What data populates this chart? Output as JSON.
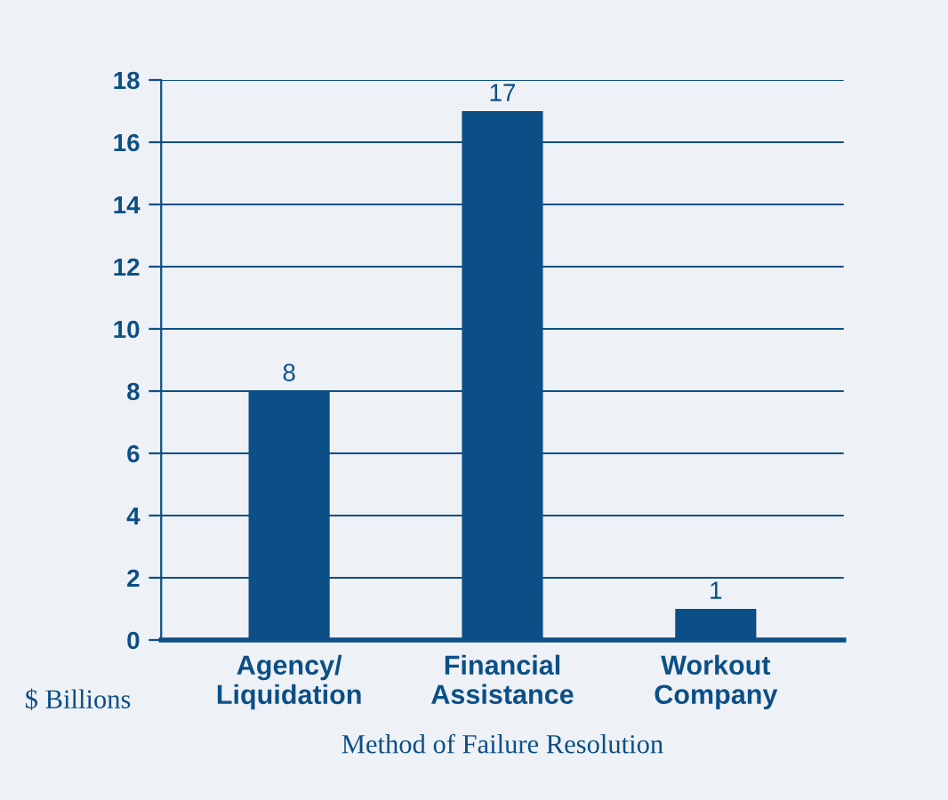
{
  "chart_data": {
    "type": "bar",
    "categories": [
      "Agency/\nLiquidation",
      "Financial\nAssistance",
      "Workout\nCompany"
    ],
    "values": [
      8,
      17,
      1
    ],
    "color": "#0b4f86",
    "ylabel": "$ Billions",
    "xlabel": "Method of Failure Resolution",
    "ylim": [
      0,
      18
    ],
    "yticks": [
      0,
      2,
      4,
      6,
      8,
      10,
      12,
      14,
      16,
      18
    ],
    "grid": "y",
    "data_labels": true
  }
}
